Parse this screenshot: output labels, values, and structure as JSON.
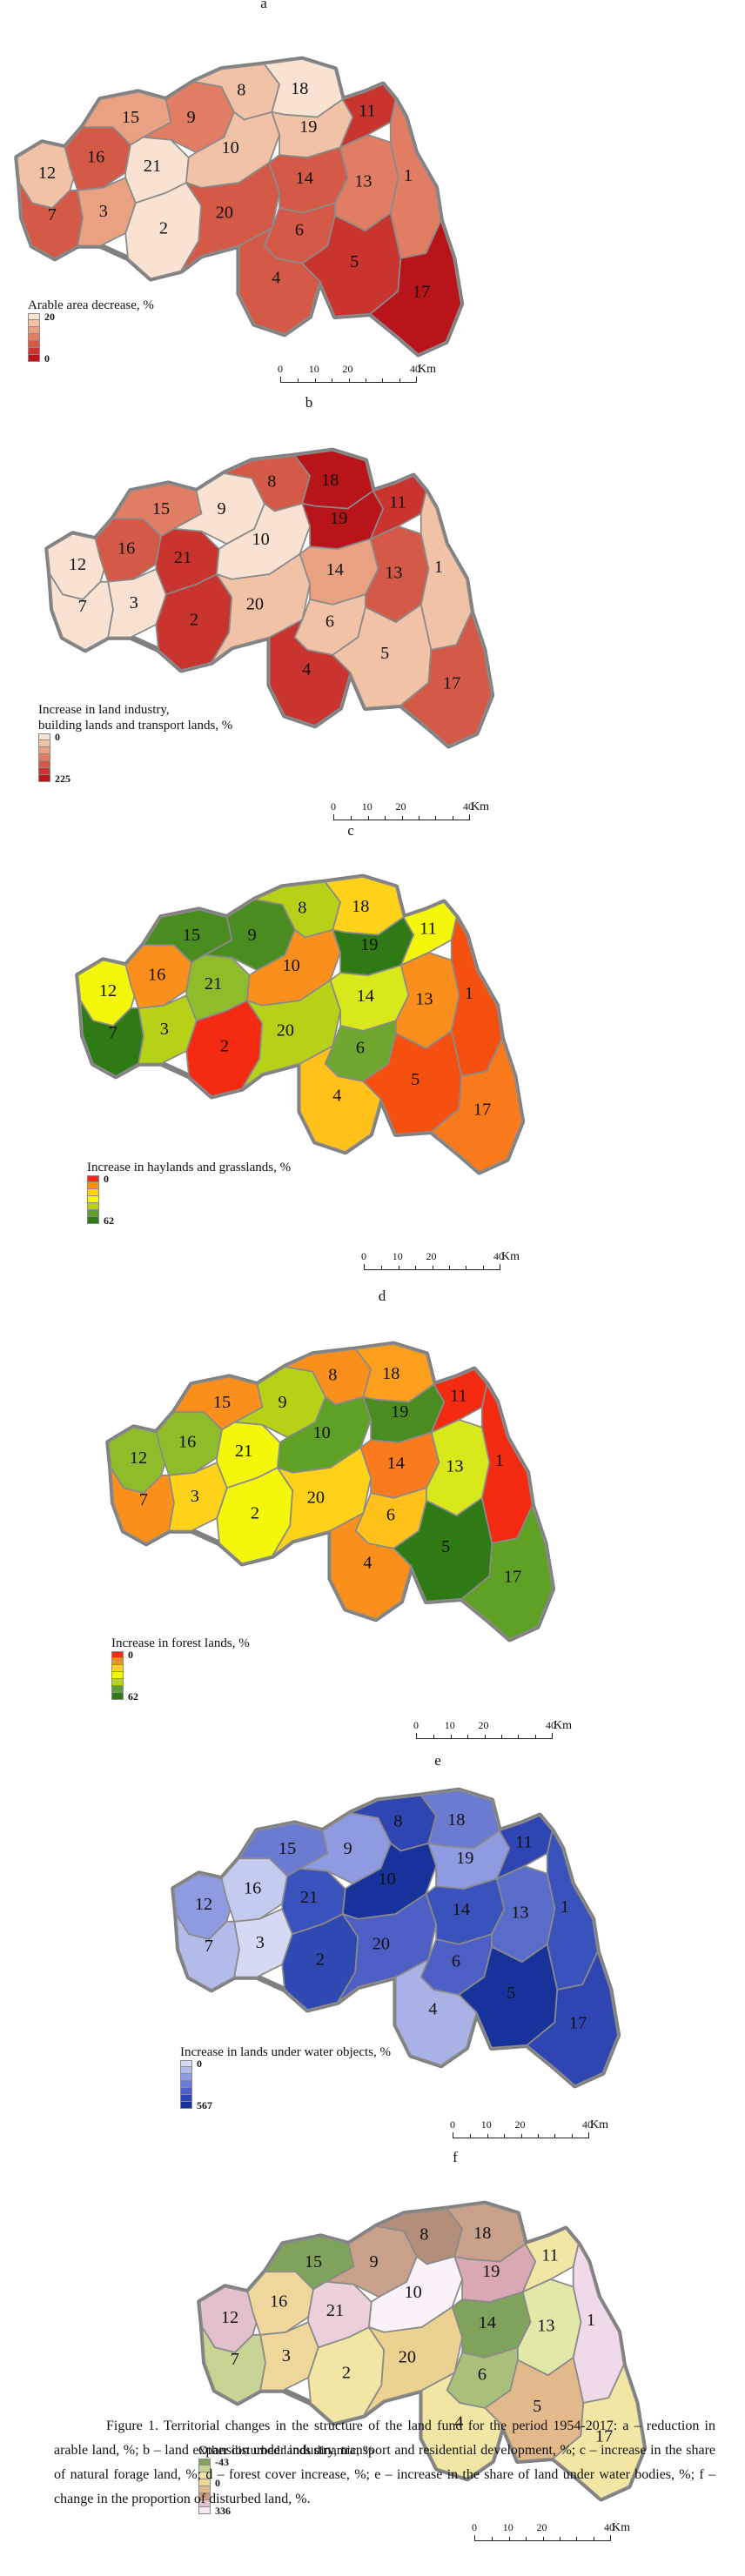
{
  "figure": {
    "caption": "Figure 1. Territorial changes in the structure of the land fund for the period 1954-2017: a – reduction in arable land, %; b – land expansion under industry, transport and residential development, %; c – increase in the share of natural forage land, %; d – forest cover increase, %; e – increase in the share of land under water bodies, %; f – change in the proportion of disturbed land, %."
  },
  "scale_bar": {
    "ticks": [
      "0",
      "10",
      "20",
      "40"
    ],
    "unit": "Km"
  },
  "panels": [
    {
      "letter": "a",
      "legend_title": "Arable area decrease, %",
      "legend_top_label": "20",
      "legend_bottom_label": "0",
      "legend_colors": [
        "#f9e2d2",
        "#f2c2a6",
        "#e9a182",
        "#e07d63",
        "#d45a47",
        "#c9342e",
        "#b8141a"
      ],
      "region_colors": {
        "1": "#e07d63",
        "2": "#f9e2d2",
        "3": "#e9a182",
        "4": "#d45a47",
        "5": "#c9342e",
        "6": "#d45a47",
        "7": "#d45a47",
        "8": "#f2c2a6",
        "9": "#e07d63",
        "10": "#f2c2a6",
        "11": "#c9342e",
        "12": "#f2c2a6",
        "13": "#e07d63",
        "14": "#d45a47",
        "15": "#e9a182",
        "16": "#d45a47",
        "17": "#b8141a",
        "18": "#f9e2d2",
        "19": "#f2c2a6",
        "20": "#d45a47",
        "21": "#f9e2d2"
      }
    },
    {
      "letter": "b",
      "legend_title": "Increase in land industry,\nbuilding lands and transport lands, %",
      "legend_top_label": "0",
      "legend_bottom_label": "225",
      "legend_colors": [
        "#f9e2d2",
        "#f2c2a6",
        "#e9a182",
        "#e07d63",
        "#d45a47",
        "#c9342e",
        "#b8141a"
      ],
      "region_colors": {
        "1": "#f2c2a6",
        "2": "#c9342e",
        "3": "#f9e2d2",
        "4": "#c9342e",
        "5": "#f2c2a6",
        "6": "#f2c2a6",
        "7": "#f9e2d2",
        "8": "#d45a47",
        "9": "#f9e2d2",
        "10": "#f9e2d2",
        "11": "#c9342e",
        "12": "#f9e2d2",
        "13": "#d45a47",
        "14": "#e9a182",
        "15": "#e07d63",
        "16": "#d45a47",
        "17": "#d45a47",
        "18": "#b8141a",
        "19": "#b8141a",
        "20": "#f2c2a6",
        "21": "#c9342e"
      }
    },
    {
      "letter": "c",
      "legend_title": "Increase in haylands and grasslands, %",
      "legend_top_label": "0",
      "legend_bottom_label": "62",
      "legend_colors": [
        "#f42b10",
        "#fb8f1c",
        "#ffd21a",
        "#f4f70a",
        "#b7d117",
        "#5fa124",
        "#2f7a15"
      ],
      "region_colors": {
        "1": "#f65010",
        "2": "#f42b10",
        "3": "#b7d117",
        "4": "#ffc11a",
        "5": "#f65010",
        "6": "#6fa630",
        "7": "#2f7a15",
        "8": "#b7d117",
        "9": "#4a8c20",
        "10": "#fb8f1c",
        "11": "#f4f70a",
        "12": "#f4f70a",
        "13": "#fb8f1c",
        "14": "#d8e81a",
        "15": "#4a8c20",
        "16": "#fb8f1c",
        "17": "#fb7a1c",
        "18": "#ffd21a",
        "19": "#2f7a15",
        "20": "#b7d117",
        "21": "#8fbc2a"
      }
    },
    {
      "letter": "d",
      "legend_title": "Increase in forest lands, %",
      "legend_top_label": "0",
      "legend_bottom_label": "62",
      "legend_colors": [
        "#f42b10",
        "#fb8f1c",
        "#ffd21a",
        "#f4f70a",
        "#b7d117",
        "#5fa124",
        "#2f7a15"
      ],
      "region_colors": {
        "1": "#f42b10",
        "2": "#f4f70a",
        "3": "#ffd21a",
        "4": "#fb8f1c",
        "5": "#2f7a15",
        "6": "#ffc11a",
        "7": "#fb8f1c",
        "8": "#fb8f1c",
        "9": "#b7d117",
        "10": "#5fa124",
        "11": "#f42b10",
        "12": "#8fbc2a",
        "13": "#d8e81a",
        "14": "#fb7a1c",
        "15": "#fb8f1c",
        "16": "#8fbc2a",
        "17": "#5fa124",
        "18": "#fb9f1c",
        "19": "#4a8c20",
        "20": "#ffd21a",
        "21": "#f4f70a"
      }
    },
    {
      "letter": "e",
      "legend_title": "Increase in lands under water objects, %",
      "legend_top_label": "0",
      "legend_bottom_label": "567",
      "legend_colors": [
        "#d5d9f4",
        "#b3bbeb",
        "#8f9be0",
        "#6c7bd2",
        "#4d5fc4",
        "#2f46b2",
        "#18329c"
      ],
      "region_colors": {
        "1": "#3a53bc",
        "2": "#3048b2",
        "3": "#d5d9f4",
        "4": "#a9b2e6",
        "5": "#18329c",
        "6": "#4d5fc4",
        "7": "#b3bbeb",
        "8": "#2f46b2",
        "9": "#8f9be0",
        "10": "#18329c",
        "11": "#2f46b2",
        "12": "#8f9be0",
        "13": "#5a6cc9",
        "14": "#3a53bc",
        "15": "#6c7bd2",
        "16": "#c4cbf0",
        "17": "#2f46b2",
        "18": "#6c7bd2",
        "19": "#8f9be0",
        "20": "#4d5fc4",
        "21": "#3a53bc"
      }
    },
    {
      "letter": "f",
      "legend_title": "Other disturbed lands dinamic, %",
      "legend_top_label": "-43",
      "legend_middle_label": "0",
      "legend_bottom_label": "336",
      "legend_colors": [
        "#7fa35a",
        "#c7d493",
        "#f1e6a4",
        "#efd69a",
        "#e2b98a",
        "#d29a81",
        "#e2c0cc",
        "#f6e8f2"
      ],
      "region_colors": {
        "1": "#f0d9e8",
        "2": "#f1e6a4",
        "3": "#efd69a",
        "4": "#f1e6a4",
        "5": "#e2b98a",
        "6": "#a9c07a",
        "7": "#c7d493",
        "8": "#b38e7a",
        "9": "#c9a08a",
        "10": "#fbf1f8",
        "11": "#f1e6a4",
        "12": "#e2c0cc",
        "13": "#e2e8a8",
        "14": "#7fa35a",
        "15": "#7fa35a",
        "16": "#efd69a",
        "17": "#f1e6a4",
        "18": "#c9a08a",
        "19": "#d9a8b4",
        "20": "#ecd290",
        "21": "#ebd0dc"
      }
    }
  ]
}
